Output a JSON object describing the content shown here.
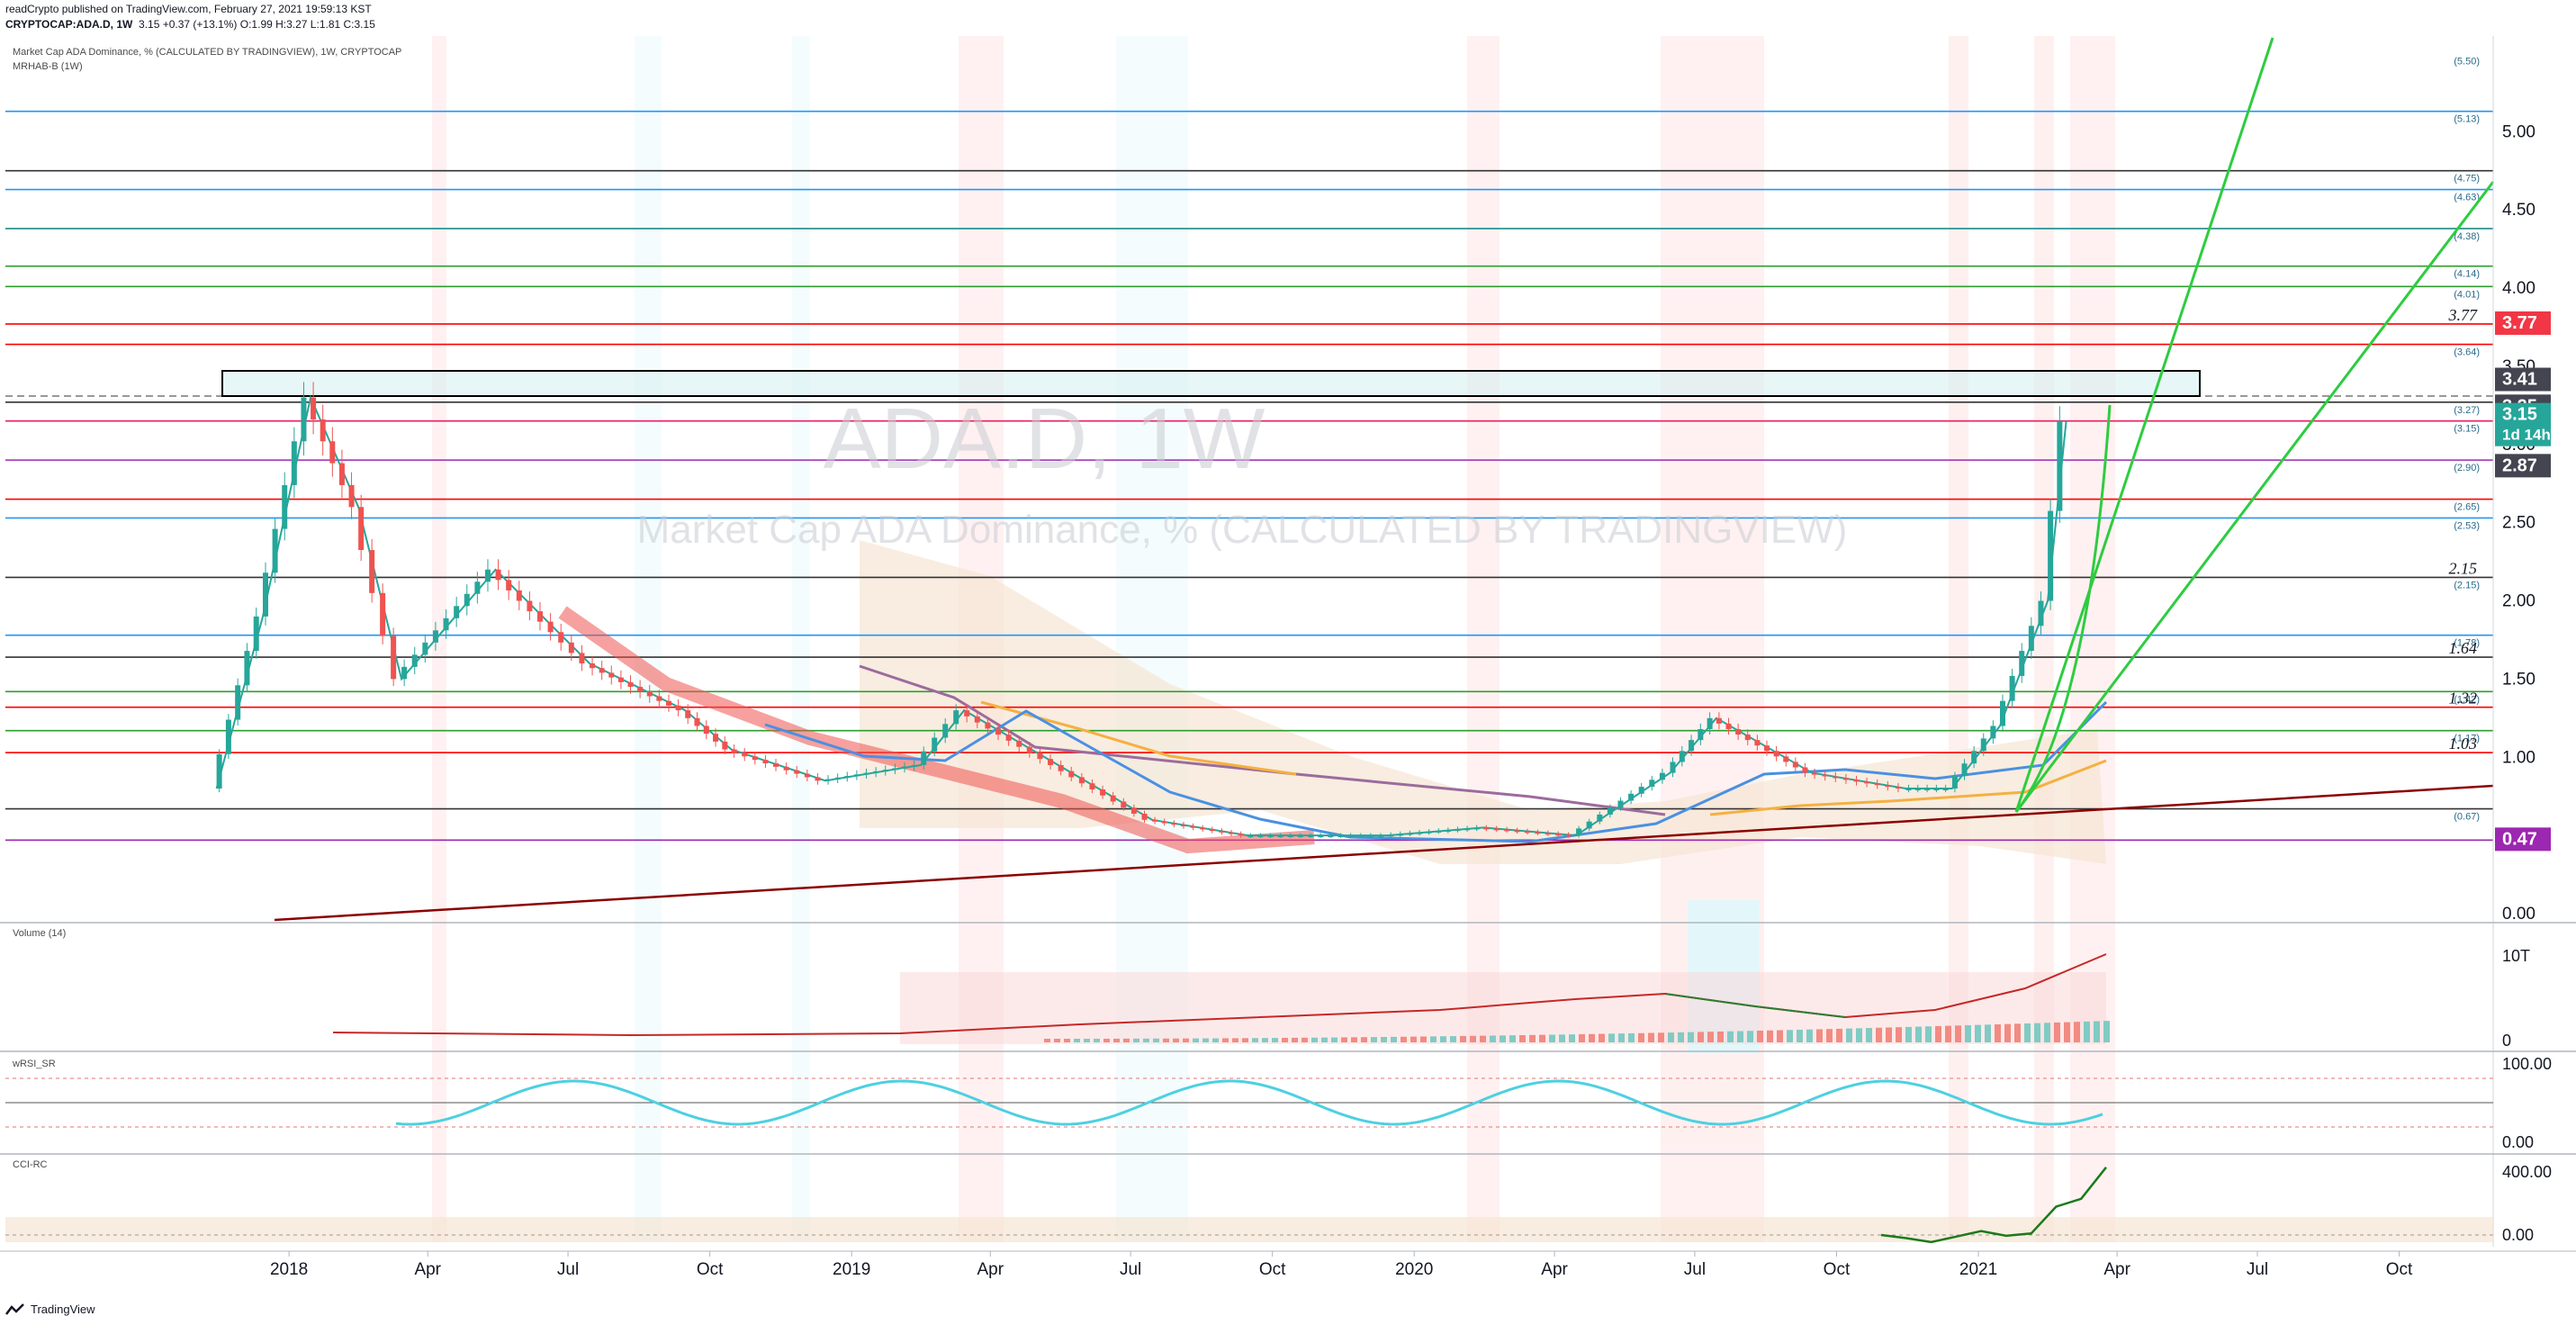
{
  "header": {
    "line1": "readCrypto published on TradingView.com, February 27, 2021 19:59:13 KST",
    "symbol": "CRYPTOCAP:ADA.D, 1W",
    "ohlc": "3.15 +0.37 (+13.1%) O:1.99 H:3.27 L:1.81 C:3.15"
  },
  "pane_labels": {
    "main": "Market Cap ADA Dominance, % (CALCULATED BY TRADINGVIEW), 1W, CRYPTOCAP",
    "sub": "MRHAB-B (1W)",
    "volume": "Volume (14)",
    "rsi": "wRSI_SR",
    "cci": "CCI-RC"
  },
  "watermark": {
    "big": "ADA.D, 1W",
    "small": "Market Cap ADA Dominance, % (CALCULATED BY TRADINGVIEW)"
  },
  "footer": {
    "brand": "TradingView"
  },
  "colors": {
    "up": "#26a69a",
    "down": "#ef5350",
    "red_line": "#ff0000",
    "green_line": "#2ecc40",
    "dark_red_trend": "#8b0000",
    "price_badge": "#26a69a",
    "red_badge": "#f23645",
    "purple_badge": "#9c27b0",
    "gray_badge": "#434651"
  },
  "chart_data": [
    {
      "type": "line",
      "title": "Market Cap ADA Dominance, % (CALCULATED BY TRADINGVIEW), 1W, CRYPTOCAP",
      "ylim": [
        0,
        5.6
      ],
      "y_ticks": [
        "5.00",
        "4.50",
        "4.00",
        "3.50",
        "3.00",
        "2.50",
        "2.00",
        "1.50",
        "1.00",
        "0.00"
      ],
      "x_ticks": [
        "2018",
        "Apr",
        "Jul",
        "Oct",
        "2019",
        "Apr",
        "Jul",
        "Oct",
        "2020",
        "Apr",
        "Jul",
        "Oct",
        "2021",
        "Apr",
        "Jul",
        "Oct"
      ],
      "price_series": [
        {
          "x": "2017-11",
          "y": 0.8
        },
        {
          "x": "2017-12",
          "y": 1.9
        },
        {
          "x": "2018-01",
          "y": 3.3
        },
        {
          "x": "2018-02",
          "y": 2.6
        },
        {
          "x": "2018-03",
          "y": 1.5
        },
        {
          "x": "2018-05",
          "y": 2.2
        },
        {
          "x": "2018-07",
          "y": 1.6
        },
        {
          "x": "2018-09",
          "y": 1.3
        },
        {
          "x": "2018-10",
          "y": 1.05
        },
        {
          "x": "2018-12",
          "y": 0.85
        },
        {
          "x": "2019-02",
          "y": 0.95
        },
        {
          "x": "2019-03",
          "y": 1.3
        },
        {
          "x": "2019-05",
          "y": 0.95
        },
        {
          "x": "2019-07",
          "y": 0.6
        },
        {
          "x": "2019-09",
          "y": 0.5
        },
        {
          "x": "2019-12",
          "y": 0.5
        },
        {
          "x": "2020-02",
          "y": 0.55
        },
        {
          "x": "2020-04",
          "y": 0.5
        },
        {
          "x": "2020-06",
          "y": 0.9
        },
        {
          "x": "2020-07",
          "y": 1.25
        },
        {
          "x": "2020-09",
          "y": 0.9
        },
        {
          "x": "2020-11",
          "y": 0.8
        },
        {
          "x": "2020-12",
          "y": 0.8
        },
        {
          "x": "2021-01",
          "y": 1.2
        },
        {
          "x": "2021-02",
          "y": 2.0
        },
        {
          "x": "2021-02-27",
          "y": 3.15
        }
      ],
      "horizontal_levels": [
        {
          "value": "5.13",
          "color": "#2196f3"
        },
        {
          "value": "4.75",
          "color": "#333333"
        },
        {
          "value": "4.63",
          "color": "#2196f3"
        },
        {
          "value": "4.38",
          "color": "#1b8a8a"
        },
        {
          "value": "4.14",
          "color": "#2e9e2e"
        },
        {
          "value": "4.01",
          "color": "#2e9e2e"
        },
        {
          "value": "3.77",
          "color": "#ff0000"
        },
        {
          "value": "3.64",
          "color": "#ff0000"
        },
        {
          "value": "3.27",
          "color": "#333333"
        },
        {
          "value": "3.15",
          "color": "#e91e63"
        },
        {
          "value": "2.90",
          "color": "#9c27b0"
        },
        {
          "value": "2.65",
          "color": "#ff0000"
        },
        {
          "value": "2.53",
          "color": "#2196f3"
        },
        {
          "value": "2.15",
          "color": "#333333"
        },
        {
          "value": "1.78",
          "color": "#2196f3"
        },
        {
          "value": "1.64",
          "color": "#333333"
        },
        {
          "value": "1.42",
          "color": "#2e9e2e"
        },
        {
          "value": "1.32",
          "color": "#ff0000"
        },
        {
          "value": "1.17",
          "color": "#2e9e2e"
        },
        {
          "value": "1.03",
          "color": "#ff0000"
        },
        {
          "value": "0.67",
          "color": "#333333"
        },
        {
          "value": "0.47",
          "color": "#9c27b0"
        }
      ],
      "level_tags": [
        "(5.50)",
        "(5.13)",
        "(4.75)",
        "(4.63)",
        "(4.38)",
        "(4.14)",
        "(4.01)",
        "(3.64)",
        "(3.27)",
        "(3.15)",
        "(2.90)",
        "(2.65)",
        "(2.53)",
        "(2.15)",
        "(1.78)",
        "(1.42)",
        "(1.17)",
        "(0.67)"
      ],
      "italic_levels": [
        "3.77",
        "2.15",
        "1.64",
        "1.32",
        "1.03"
      ],
      "badges": [
        {
          "text": "3.77",
          "kind": "red"
        },
        {
          "text": "3.41",
          "kind": "gray"
        },
        {
          "text": "3.25",
          "kind": "gray"
        },
        {
          "text": "3.15",
          "kind": "price"
        },
        {
          "text": "1d 14h",
          "kind": "price"
        },
        {
          "text": "2.87",
          "kind": "gray"
        },
        {
          "text": "0.47",
          "kind": "purple"
        }
      ],
      "box_zone": [
        3.25,
        3.41
      ]
    },
    {
      "type": "bar",
      "title": "Volume (14)",
      "y_ticks": [
        "10T",
        "0"
      ]
    },
    {
      "type": "line",
      "title": "wRSI_SR",
      "y_ticks": [
        "100.00",
        "0.00"
      ]
    },
    {
      "type": "line",
      "title": "CCI-RC",
      "y_ticks": [
        "400.00",
        "0.00"
      ],
      "series": [
        {
          "values": [
            0,
            -20,
            -45,
            -10,
            25,
            -5,
            10,
            180,
            230,
            430
          ]
        }
      ]
    }
  ]
}
